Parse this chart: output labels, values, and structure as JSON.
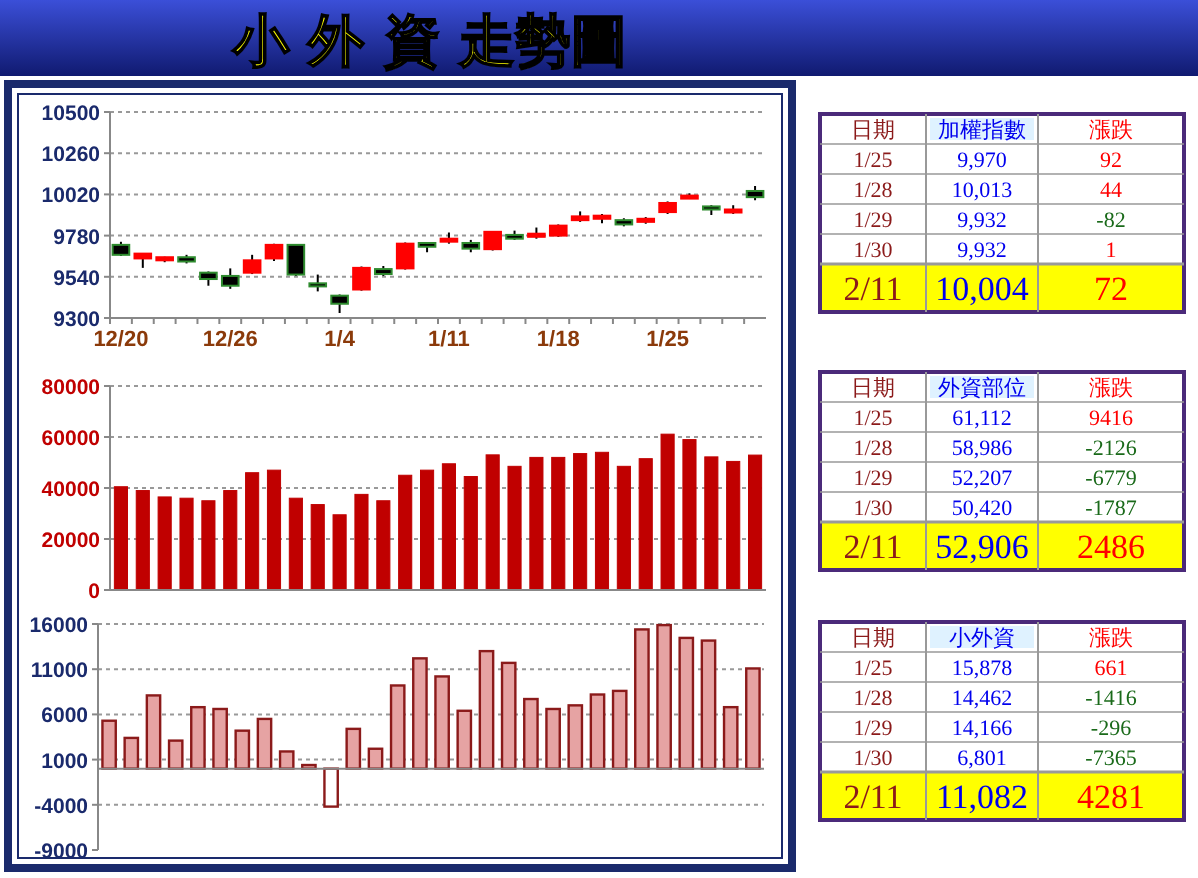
{
  "chart_data": [
    {
      "type": "candlestick",
      "title": "小 外 資 走勢圖",
      "categories": [
        "12/20",
        null,
        null,
        null,
        null,
        "12/26",
        null,
        null,
        null,
        null,
        "1/4",
        null,
        null,
        null,
        null,
        "1/11",
        null,
        null,
        null,
        null,
        "1/18",
        null,
        null,
        null,
        null,
        "1/25",
        null,
        null,
        null,
        null
      ],
      "ohlc": [
        [
          9726,
          9744,
          9661,
          9668
        ],
        [
          9647,
          9675,
          9592,
          9675
        ],
        [
          9636,
          9657,
          9625,
          9654
        ],
        [
          9654,
          9668,
          9618,
          9629
        ],
        [
          9564,
          9571,
          9488,
          9527
        ],
        [
          9545,
          9589,
          9470,
          9488
        ],
        [
          9564,
          9668,
          9556,
          9636
        ],
        [
          9647,
          9733,
          9632,
          9726
        ],
        [
          9726,
          9726,
          9545,
          9553
        ],
        [
          9502,
          9553,
          9455,
          9484
        ],
        [
          9430,
          9437,
          9329,
          9383
        ],
        [
          9466,
          9600,
          9459,
          9592
        ],
        [
          9585,
          9603,
          9545,
          9556
        ],
        [
          9589,
          9740,
          9582,
          9733
        ],
        [
          9737,
          9740,
          9683,
          9715
        ],
        [
          9748,
          9798,
          9733,
          9762
        ],
        [
          9737,
          9755,
          9683,
          9704
        ],
        [
          9701,
          9805,
          9693,
          9802
        ],
        [
          9784,
          9809,
          9755,
          9762
        ],
        [
          9773,
          9827,
          9762,
          9791
        ],
        [
          9780,
          9845,
          9773,
          9838
        ],
        [
          9870,
          9921,
          9860,
          9892
        ],
        [
          9878,
          9906,
          9852,
          9896
        ],
        [
          9870,
          9881,
          9834,
          9845
        ],
        [
          9860,
          9888,
          9849,
          9878
        ],
        [
          9917,
          9979,
          9906,
          9970
        ],
        [
          10000,
          10026,
          9993,
          10013
        ],
        [
          9950,
          9957,
          9900,
          9932
        ],
        [
          9925,
          9957,
          9906,
          9932
        ],
        [
          10040,
          10069,
          9986,
          10004
        ]
      ],
      "colors": [
        "#000000",
        "#ff0000",
        "#ff0000",
        "#000000",
        "#000000",
        "#000000",
        "#ff0000",
        "#ff0000",
        "#000000",
        "#000000",
        "#000000",
        "#ff0000",
        "#000000",
        "#ff0000",
        "#000000",
        "#ff0000",
        "#000000",
        "#ff0000",
        "#000000",
        "#ff0000",
        "#ff0000",
        "#ff0000",
        "#ff0000",
        "#000000",
        "#ff0000",
        "#ff0000",
        "#ff0000",
        "#000000",
        "#ff0000",
        "#000000"
      ],
      "ylim": [
        9300,
        10500
      ],
      "yticks": [
        9300,
        9540,
        9780,
        10020,
        10260,
        10500
      ],
      "grid": "y"
    },
    {
      "type": "bar",
      "categories": [
        null,
        null,
        null,
        null,
        null,
        null,
        null,
        null,
        null,
        null,
        null,
        null,
        null,
        null,
        null,
        null,
        null,
        null,
        null,
        null,
        null,
        null,
        null,
        null,
        null,
        null,
        null,
        null,
        null,
        null
      ],
      "values": [
        40500,
        39000,
        36500,
        36000,
        35000,
        39000,
        46000,
        47000,
        36000,
        33500,
        29500,
        37500,
        35000,
        45000,
        47000,
        49500,
        44500,
        53000,
        48500,
        52000,
        52000,
        53500,
        54000,
        48500,
        51500,
        61112,
        58986,
        52207,
        50420,
        52906
      ],
      "color": "#c00000",
      "ylim": [
        0,
        80000
      ],
      "yticks": [
        0,
        20000,
        40000,
        60000,
        80000
      ],
      "grid": "y"
    },
    {
      "type": "bar",
      "categories": [
        null,
        null,
        null,
        null,
        null,
        null,
        null,
        null,
        null,
        null,
        null,
        null,
        null,
        null,
        null,
        null,
        null,
        null,
        null,
        null,
        null,
        null,
        null,
        null,
        null,
        null,
        null,
        null,
        null,
        null
      ],
      "values": [
        5300,
        3400,
        8100,
        3100,
        6800,
        6600,
        4200,
        5500,
        1900,
        400,
        -4200,
        4400,
        2200,
        9200,
        12200,
        10200,
        6400,
        13000,
        11700,
        7700,
        6600,
        7000,
        8200,
        8600,
        15400,
        15878,
        14462,
        14166,
        6801,
        11082
      ],
      "colors": [
        "#e6a3a3",
        "#e6a3a3",
        "#e6a3a3",
        "#e6a3a3",
        "#e6a3a3",
        "#e6a3a3",
        "#e6a3a3",
        "#e6a3a3",
        "#e6a3a3",
        "#e6a3a3",
        "#ffffff",
        "#e6a3a3",
        "#e6a3a3",
        "#e6a3a3",
        "#e6a3a3",
        "#e6a3a3",
        "#e6a3a3",
        "#e6a3a3",
        "#e6a3a3",
        "#e6a3a3",
        "#e6a3a3",
        "#e6a3a3",
        "#e6a3a3",
        "#e6a3a3",
        "#e6a3a3",
        "#e6a3a3",
        "#e6a3a3",
        "#e6a3a3",
        "#e6a3a3",
        "#e6a3a3"
      ],
      "ylim": [
        -9000,
        16000
      ],
      "yticks": [
        -9000,
        -4000,
        1000,
        6000,
        11000,
        16000
      ],
      "grid": "y"
    },
    {
      "type": "other",
      "annotations": [
        "日期",
        "加權指數",
        "漲跌",
        "1/25",
        "9,970",
        "92",
        "1/28",
        "10,013",
        "44",
        "1/29",
        "9,932",
        "-82",
        "1/30",
        "9,932",
        "1",
        "2/11",
        "10,004",
        "72"
      ]
    },
    {
      "type": "other",
      "annotations": [
        "日期",
        "外資部位",
        "漲跌",
        "1/25",
        "61,112",
        "9416",
        "1/28",
        "58,986",
        "-2126",
        "1/29",
        "52,207",
        "-6779",
        "1/30",
        "50,420",
        "-1787",
        "2/11",
        "52,906",
        "2486"
      ]
    },
    {
      "type": "other",
      "annotations": [
        "日期",
        "小外資",
        "漲跌",
        "1/25",
        "15,878",
        "661",
        "1/28",
        "14,462",
        "-1416",
        "1/29",
        "14,166",
        "-296",
        "1/30",
        "6,801",
        "-7365",
        "2/11",
        "11,082",
        "4281"
      ]
    }
  ]
}
